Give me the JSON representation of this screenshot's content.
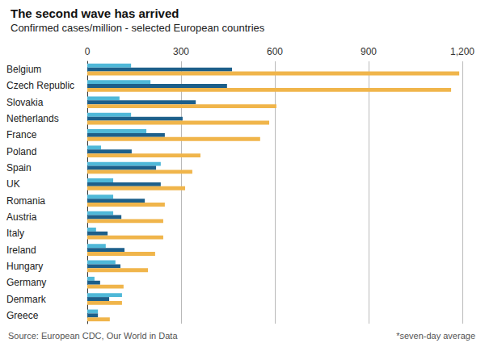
{
  "chart_data": {
    "type": "bar",
    "title": "The second wave has arrived",
    "subtitle": "Confirmed cases/million - selected European countries",
    "orientation": "horizontal",
    "grid": true,
    "data_labels": false,
    "categories": [
      "Belgium",
      "Czech Republic",
      "Slovakia",
      "Netherlands",
      "France",
      "Poland",
      "Spain",
      "UK",
      "Romania",
      "Austria",
      "Italy",
      "Ireland",
      "Hungary",
      "Germany",
      "Denmark",
      "Greece"
    ],
    "series": [
      {
        "color": "#4fb8d8",
        "values": [
          140,
          202,
          103,
          140,
          189,
          44,
          235,
          83,
          83,
          83,
          28,
          59,
          90,
          23,
          111,
          34
        ]
      },
      {
        "color": "#1d5f8a",
        "values": [
          463,
          447,
          347,
          305,
          248,
          142,
          220,
          235,
          184,
          109,
          65,
          119,
          106,
          41,
          70,
          34
        ]
      },
      {
        "color": "#f0b54b",
        "values": [
          1190,
          1164,
          605,
          582,
          553,
          362,
          336,
          313,
          248,
          243,
          243,
          217,
          194,
          116,
          111,
          72
        ]
      }
    ],
    "xlim": [
      0,
      1200
    ],
    "xticks": [
      0,
      300,
      600,
      900,
      {
        "value": 1200,
        "label": "1,200"
      }
    ],
    "annotations": [
      "Source: European CDC, Our World in Data",
      "*seven-day average"
    ]
  }
}
